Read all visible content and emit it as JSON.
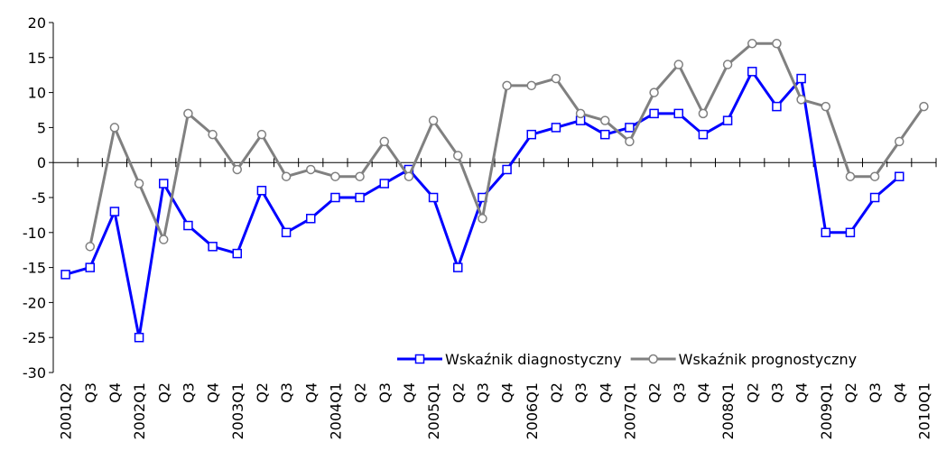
{
  "chart_data": {
    "type": "line",
    "categories": [
      "2001Q2",
      "Q3",
      "Q4",
      "2002Q1",
      "Q2",
      "Q3",
      "Q4",
      "2003Q1",
      "Q2",
      "Q3",
      "Q4",
      "2004Q1",
      "Q2",
      "Q3",
      "Q4",
      "2005Q1",
      "Q2",
      "Q3",
      "Q4",
      "2006Q1",
      "Q2",
      "Q3",
      "Q4",
      "2007Q1",
      "Q2",
      "Q3",
      "Q4",
      "2008Q1",
      "Q2",
      "Q3",
      "Q4",
      "2009Q1",
      "Q2",
      "Q3",
      "Q4",
      "2010Q1"
    ],
    "series": [
      {
        "name": "Wskaźnik diagnostyczny",
        "color": "#0000ff",
        "marker": "square",
        "values": [
          -16,
          -15,
          -7,
          -25,
          -3,
          -9,
          -12,
          -13,
          -4,
          -10,
          -8,
          -5,
          -5,
          -3,
          -1,
          -5,
          -15,
          -5,
          -1,
          4,
          5,
          6,
          4,
          5,
          7,
          7,
          4,
          6,
          13,
          8,
          12,
          -10,
          -10,
          -5,
          -2,
          null
        ]
      },
      {
        "name": "Wskaźnik prognostyczny",
        "color": "#808080",
        "marker": "circle",
        "values": [
          null,
          -12,
          5,
          -3,
          -11,
          7,
          4,
          -1,
          4,
          -2,
          -1,
          -2,
          -2,
          3,
          -2,
          6,
          1,
          -8,
          11,
          11,
          12,
          7,
          6,
          3,
          10,
          14,
          7,
          14,
          17,
          17,
          9,
          8,
          -2,
          -2,
          3,
          8
        ]
      }
    ],
    "ylim": [
      -30,
      20
    ],
    "yticks": [
      -30,
      -25,
      -20,
      -15,
      -10,
      -5,
      0,
      5,
      10,
      15,
      20
    ],
    "grid": false,
    "legend": "bottom-right"
  }
}
